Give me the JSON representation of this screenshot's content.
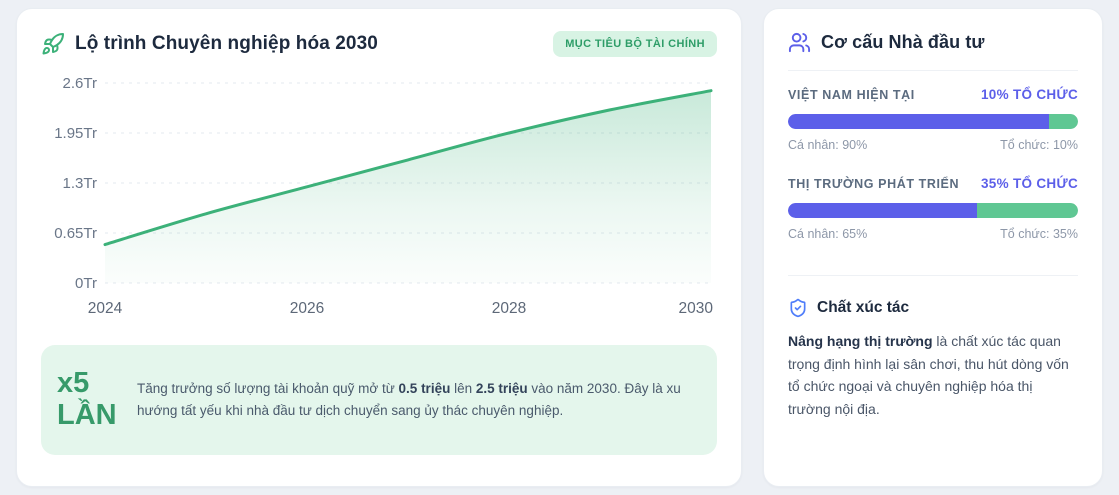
{
  "colors": {
    "page_bg": "#edf0f5",
    "accent_green": "#3cb179",
    "accent_purple": "#5c5fe9",
    "bar_green": "#5fc793",
    "badge_bg": "#d8f3e4",
    "badge_text": "#2e9d68",
    "insight_bg": "#e4f6ec",
    "insight_accent": "#379a6a",
    "title_navy": "#1d2a3e",
    "catalyst_icon_blue": "#4f7dfa"
  },
  "roadmap_card": {
    "title": "Lộ trình Chuyên nghiệp hóa 2030",
    "badge": "MỤC TIÊU BỘ TÀI CHÍNH",
    "insight": {
      "multiplier_line1": "x5",
      "multiplier_line2": "LẦN",
      "text_parts": [
        {
          "text": "Tăng trưởng số lượng tài khoản quỹ mở từ ",
          "bold": false
        },
        {
          "text": "0.5 triệu",
          "bold": true
        },
        {
          "text": " lên ",
          "bold": false
        },
        {
          "text": "2.5 triệu",
          "bold": true
        },
        {
          "text": " vào năm 2030. Đây là xu hướng tất yếu khi nhà đầu tư dịch chuyển sang ủy thác chuyên nghiệp.",
          "bold": false
        }
      ]
    }
  },
  "chart_data": {
    "type": "area",
    "title": "Lộ trình Chuyên nghiệp hóa 2030",
    "xlabel": "",
    "ylabel": "Tr",
    "x": [
      2024,
      2025,
      2026,
      2027,
      2028,
      2029,
      2030
    ],
    "values": [
      0.5,
      0.9,
      1.25,
      1.6,
      1.95,
      2.25,
      2.5
    ],
    "xticks": [
      "2024",
      "2026",
      "2028",
      "2030"
    ],
    "xtick_values": [
      2024,
      2026,
      2028,
      2030
    ],
    "yticks": [
      "0Tr",
      "0.65Tr",
      "1.3Tr",
      "1.95Tr",
      "2.6Tr"
    ],
    "ytick_values": [
      0,
      0.65,
      1.3,
      1.95,
      2.6
    ],
    "xlim": [
      2024,
      2030
    ],
    "ylim": [
      0,
      2.6
    ],
    "grid": "horizontal-dashed",
    "legend": false,
    "line_color": "#3cb179",
    "area_fill": "vertical gradient of line color to transparent"
  },
  "investor_card": {
    "title": "Cơ cấu Nhà đầu tư",
    "rows": [
      {
        "label": "VIỆT NAM HIỆN TẠI",
        "highlight": "10% TỔ CHỨC",
        "individual_pct": 90,
        "institution_pct": 10,
        "left_caption": "Cá nhân: 90%",
        "right_caption": "Tổ chức: 10%"
      },
      {
        "label": "THỊ TRƯỜNG PHÁT TRIỂN",
        "highlight": "35% TỔ CHỨC",
        "individual_pct": 65,
        "institution_pct": 35,
        "left_caption": "Cá nhân: 65%",
        "right_caption": "Tổ chức: 35%"
      }
    ],
    "catalyst": {
      "title": "Chất xúc tác",
      "text_parts": [
        {
          "text": "Nâng hạng thị trường",
          "bold": true
        },
        {
          "text": " là chất xúc tác quan trọng định hình lại sân chơi, thu hút dòng vốn tổ chức ngoại và chuyên nghiệp hóa thị trường nội địa.",
          "bold": false
        }
      ]
    }
  }
}
